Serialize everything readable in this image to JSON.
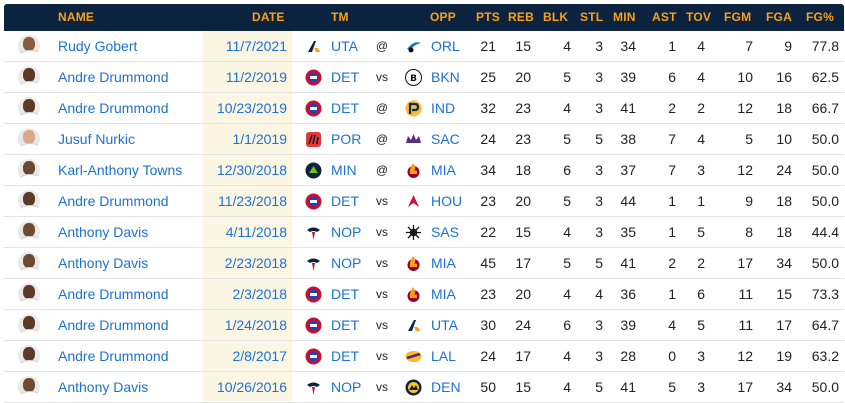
{
  "header": {
    "name": "NAME",
    "date": "DATE",
    "tm": "TM",
    "opp": "OPP",
    "pts": "PTS",
    "reb": "REB",
    "blk": "BLK",
    "stl": "STL",
    "min": "MIN",
    "ast": "AST",
    "tov": "TOV",
    "fgm": "FGM",
    "fga": "FGA",
    "fgp": "FG%"
  },
  "colors": {
    "header_bg": "#0c2340",
    "header_text": "#f9a01b",
    "link": "#1d72d1",
    "date_band": "#fbf5e3"
  },
  "rows": [
    {
      "name": "Rudy Gobert",
      "date": "11/7/2021",
      "tm": "UTA",
      "tm_icon": "jazz-logo-icon",
      "sep": "@",
      "opp": "ORL",
      "opp_icon": "magic-logo-icon",
      "pts": "21",
      "reb": "15",
      "blk": "4",
      "stl": "3",
      "min": "34",
      "ast": "1",
      "tov": "4",
      "fgm": "7",
      "fga": "9",
      "fgp": "77.8",
      "skin": "#8a5a3c"
    },
    {
      "name": "Andre Drummond",
      "date": "11/2/2019",
      "tm": "DET",
      "tm_icon": "pistons-logo-icon",
      "sep": "vs",
      "opp": "BKN",
      "opp_icon": "nets-logo-icon",
      "pts": "25",
      "reb": "20",
      "blk": "5",
      "stl": "3",
      "min": "39",
      "ast": "6",
      "tov": "4",
      "fgm": "10",
      "fga": "16",
      "fgp": "62.5",
      "skin": "#5c3a26"
    },
    {
      "name": "Andre Drummond",
      "date": "10/23/2019",
      "tm": "DET",
      "tm_icon": "pistons-logo-icon",
      "sep": "@",
      "opp": "IND",
      "opp_icon": "pacers-logo-icon",
      "pts": "32",
      "reb": "23",
      "blk": "4",
      "stl": "3",
      "min": "41",
      "ast": "2",
      "tov": "2",
      "fgm": "12",
      "fga": "18",
      "fgp": "66.7",
      "skin": "#5c3a26"
    },
    {
      "name": "Jusuf Nurkic",
      "date": "1/1/2019",
      "tm": "POR",
      "tm_icon": "blazers-logo-icon",
      "sep": "@",
      "opp": "SAC",
      "opp_icon": "kings-logo-icon",
      "pts": "24",
      "reb": "23",
      "blk": "5",
      "stl": "5",
      "min": "38",
      "ast": "7",
      "tov": "4",
      "fgm": "5",
      "fga": "10",
      "fgp": "50.0",
      "skin": "#d9a88a"
    },
    {
      "name": "Karl-Anthony Towns",
      "date": "12/30/2018",
      "tm": "MIN",
      "tm_icon": "timberwolves-logo-icon",
      "sep": "@",
      "opp": "MIA",
      "opp_icon": "heat-logo-icon",
      "pts": "34",
      "reb": "18",
      "blk": "6",
      "stl": "3",
      "min": "37",
      "ast": "7",
      "tov": "3",
      "fgm": "12",
      "fga": "24",
      "fgp": "50.0",
      "skin": "#6b4630"
    },
    {
      "name": "Andre Drummond",
      "date": "11/23/2018",
      "tm": "DET",
      "tm_icon": "pistons-logo-icon",
      "sep": "vs",
      "opp": "HOU",
      "opp_icon": "rockets-logo-icon",
      "pts": "23",
      "reb": "20",
      "blk": "5",
      "stl": "3",
      "min": "44",
      "ast": "1",
      "tov": "1",
      "fgm": "9",
      "fga": "18",
      "fgp": "50.0",
      "skin": "#5c3a26"
    },
    {
      "name": "Anthony Davis",
      "date": "4/11/2018",
      "tm": "NOP",
      "tm_icon": "pelicans-logo-icon",
      "sep": "vs",
      "opp": "SAS",
      "opp_icon": "spurs-logo-icon",
      "pts": "22",
      "reb": "15",
      "blk": "4",
      "stl": "3",
      "min": "35",
      "ast": "1",
      "tov": "5",
      "fgm": "8",
      "fga": "18",
      "fgp": "44.4",
      "skin": "#6e4a33"
    },
    {
      "name": "Anthony Davis",
      "date": "2/23/2018",
      "tm": "NOP",
      "tm_icon": "pelicans-logo-icon",
      "sep": "vs",
      "opp": "MIA",
      "opp_icon": "heat-logo-icon",
      "pts": "45",
      "reb": "17",
      "blk": "5",
      "stl": "5",
      "min": "41",
      "ast": "2",
      "tov": "2",
      "fgm": "17",
      "fga": "34",
      "fgp": "50.0",
      "skin": "#6e4a33"
    },
    {
      "name": "Andre Drummond",
      "date": "2/3/2018",
      "tm": "DET",
      "tm_icon": "pistons-logo-icon",
      "sep": "vs",
      "opp": "MIA",
      "opp_icon": "heat-logo-icon",
      "pts": "23",
      "reb": "20",
      "blk": "4",
      "stl": "4",
      "min": "36",
      "ast": "1",
      "tov": "6",
      "fgm": "11",
      "fga": "15",
      "fgp": "73.3",
      "skin": "#5c3a26"
    },
    {
      "name": "Andre Drummond",
      "date": "1/24/2018",
      "tm": "DET",
      "tm_icon": "pistons-logo-icon",
      "sep": "vs",
      "opp": "UTA",
      "opp_icon": "jazz-logo-icon",
      "pts": "30",
      "reb": "24",
      "blk": "6",
      "stl": "3",
      "min": "39",
      "ast": "4",
      "tov": "5",
      "fgm": "11",
      "fga": "17",
      "fgp": "64.7",
      "skin": "#5c3a26"
    },
    {
      "name": "Andre Drummond",
      "date": "2/8/2017",
      "tm": "DET",
      "tm_icon": "pistons-logo-icon",
      "sep": "vs",
      "opp": "LAL",
      "opp_icon": "lakers-logo-icon",
      "pts": "24",
      "reb": "17",
      "blk": "4",
      "stl": "3",
      "min": "28",
      "ast": "0",
      "tov": "3",
      "fgm": "12",
      "fga": "19",
      "fgp": "63.2",
      "skin": "#5c3a26"
    },
    {
      "name": "Anthony Davis",
      "date": "10/26/2016",
      "tm": "NOP",
      "tm_icon": "pelicans-logo-icon",
      "sep": "vs",
      "opp": "DEN",
      "opp_icon": "nuggets-logo-icon",
      "pts": "50",
      "reb": "15",
      "blk": "4",
      "stl": "5",
      "min": "41",
      "ast": "5",
      "tov": "3",
      "fgm": "17",
      "fga": "34",
      "fgp": "50.0",
      "skin": "#6e4a33"
    }
  ]
}
